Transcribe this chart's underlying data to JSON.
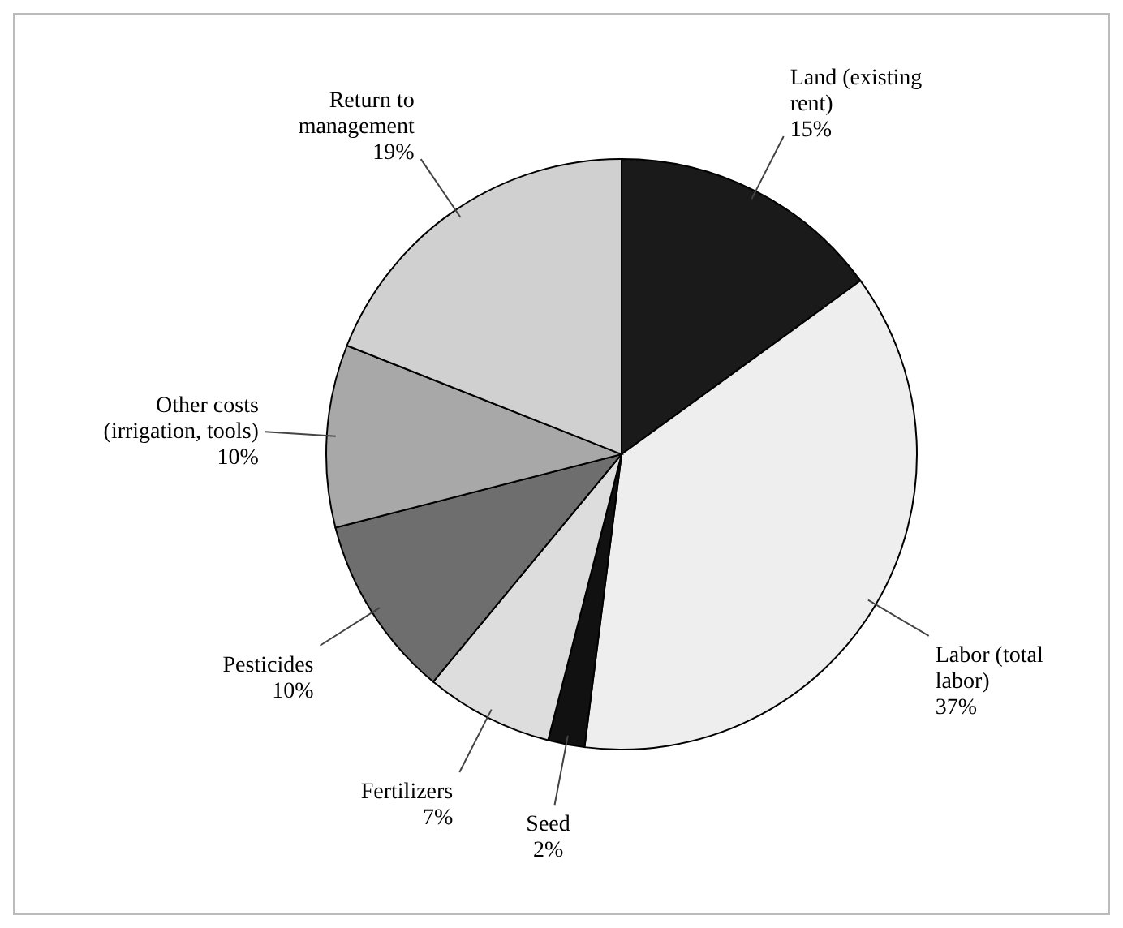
{
  "chart_data": {
    "type": "pie",
    "categories": [
      "Land (existing\nrent)",
      "Labor (total\nlabor)",
      "Seed",
      "Fertilizers",
      "Pesticides",
      "Other costs\n(irrigation, tools)",
      "Return to\nmanagement"
    ],
    "values": [
      15,
      37,
      2,
      7,
      10,
      10,
      19
    ],
    "colors": [
      "#1a1a1a",
      "#eeeeee",
      "#111111",
      "#dddddd",
      "#6e6e6e",
      "#a8a8a8",
      "#d0d0d0"
    ],
    "value_labels": [
      "15%",
      "37%",
      "2%",
      "7%",
      "10%",
      "10%",
      "19%"
    ]
  }
}
